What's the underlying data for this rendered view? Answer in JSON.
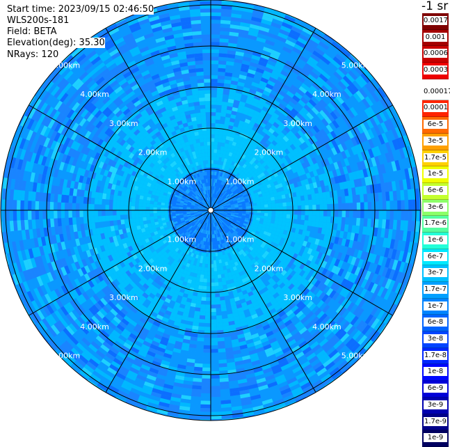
{
  "header": {
    "start_time": "Start time: 2023/09/15 02:46:50",
    "instrument": "WLS200s-181",
    "field": "Field: BETA",
    "elevation": "Elevation(deg): 35.30",
    "nrays": "NRays: 120"
  },
  "range_rings": {
    "labels": [
      "1.00km",
      "2.00km",
      "3.00km",
      "4.00km",
      "5.00km"
    ]
  },
  "colorbar": {
    "unit": "-1 sr",
    "labels": [
      "0.0017",
      "0.001",
      "0.0006",
      "0.0003",
      "0.00017",
      "0.0001",
      "6e-5",
      "3e-5",
      "1.7e-5",
      "1e-5",
      "6e-6",
      "3e-6",
      "1.7e-6",
      "1e-6",
      "6e-7",
      "3e-7",
      "1.7e-7",
      "1e-7",
      "6e-8",
      "3e-8",
      "1.7e-8",
      "1e-8",
      "6e-9",
      "3e-9",
      "1.7e-9",
      "1e-9"
    ],
    "colors": [
      "#7f0000",
      "#a50000",
      "#c80000",
      "#ee0000",
      "#ffffff",
      "#ff2400",
      "#ff6a00",
      "#ffa000",
      "#ffd000",
      "#f0ff00",
      "#c4ff2e",
      "#8cff68",
      "#54ffa0",
      "#22ffd8",
      "#00e8ff",
      "#00c0ff",
      "#00a0ff",
      "#0084ff",
      "#0064ff",
      "#0044ff",
      "#0026ff",
      "#0008ff",
      "#0000d8",
      "#0000b0",
      "#000088",
      "#000060"
    ]
  }
}
